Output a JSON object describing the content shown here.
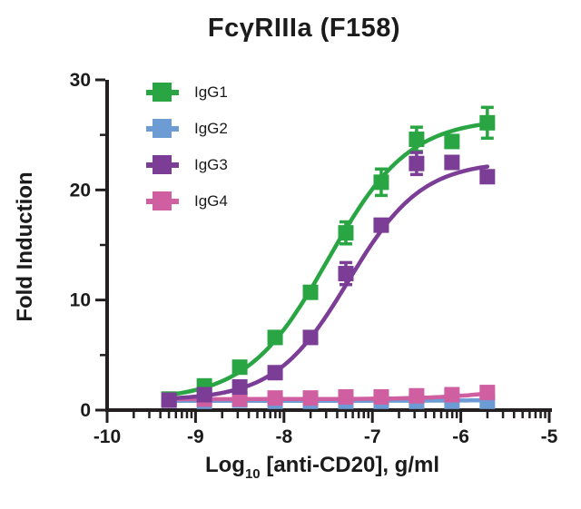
{
  "chart_data": {
    "type": "scatter",
    "title": "FcγRIIIa (F158)",
    "ylabel": "Fold Induction",
    "xlabel": {
      "main": "Log",
      "sub": "10",
      "rest": " [anti-CD20], g/ml"
    },
    "xlim": [
      -10,
      -5
    ],
    "ylim": [
      0,
      30
    ],
    "x_major_ticks": [
      -10,
      -9,
      -8,
      -7,
      -6,
      -5
    ],
    "x_minor_tick_log_units": [
      2,
      3,
      4,
      5,
      6,
      7,
      8,
      9
    ],
    "y_major_ticks": [
      0,
      10,
      20,
      30
    ],
    "y_minor_ticks": [
      5,
      15,
      25
    ],
    "grid": false,
    "legend_position": "top-left-inside",
    "marker": "square",
    "axis_color": "#231f20",
    "x": [
      -9.3,
      -8.9,
      -8.5,
      -8.1,
      -7.7,
      -7.3,
      -6.9,
      -6.5,
      -6.1,
      -5.7
    ],
    "series": [
      {
        "name": "IgG1",
        "color": "#29a643",
        "values": [
          1.0,
          2.2,
          3.9,
          6.6,
          10.7,
          16.1,
          20.7,
          24.6,
          24.4,
          26.1
        ],
        "errors": [
          0.2,
          0.2,
          0.3,
          0.3,
          0.5,
          1.0,
          1.2,
          1.1,
          0.5,
          1.4
        ],
        "fit_4pl": {
          "bottom": 0.9,
          "top": 26.5,
          "logec50": -7.5,
          "hill": 0.95
        }
      },
      {
        "name": "IgG2",
        "color": "#6d9bd3",
        "values": [
          0.9,
          0.8,
          0.9,
          0.8,
          0.8,
          0.8,
          0.8,
          0.8,
          0.8,
          0.8
        ],
        "errors": [
          0.1,
          0.1,
          0.1,
          0.1,
          0.1,
          0.1,
          0.1,
          0.1,
          0.1,
          0.1
        ],
        "fit_4pl": {
          "bottom": 0.85,
          "top": 0.95,
          "logec50": -5.5,
          "hill": 1.0
        }
      },
      {
        "name": "IgG3",
        "color": "#7b3d96",
        "values": [
          0.9,
          1.4,
          2.1,
          3.4,
          6.6,
          12.4,
          16.8,
          22.4,
          22.5,
          21.2
        ],
        "errors": [
          0.2,
          0.2,
          0.2,
          0.3,
          0.4,
          1.0,
          0.6,
          1.0,
          0.5,
          0.5
        ],
        "fit_4pl": {
          "bottom": 0.9,
          "top": 22.6,
          "logec50": -7.27,
          "hill": 1.05
        }
      },
      {
        "name": "IgG4",
        "color": "#d05fa2",
        "values": [
          1.0,
          1.0,
          1.0,
          1.1,
          1.1,
          1.2,
          1.2,
          1.3,
          1.4,
          1.6
        ],
        "errors": [
          0.1,
          0.1,
          0.1,
          0.1,
          0.1,
          0.1,
          0.1,
          0.1,
          0.1,
          0.1
        ],
        "fit_4pl": {
          "bottom": 1.0,
          "top": 2.8,
          "logec50": -5.3,
          "hill": 1.0
        }
      }
    ],
    "draw_order": [
      "IgG2",
      "IgG4",
      "IgG1",
      "IgG3"
    ]
  }
}
